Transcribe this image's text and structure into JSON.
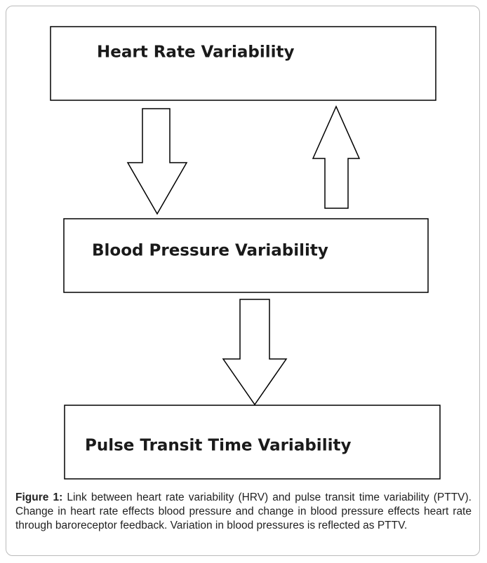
{
  "nodes": [
    {
      "label": "Heart Rate Variability"
    },
    {
      "label": "Blood Pressure Variability"
    },
    {
      "label": "Pulse Transit Time Variability"
    }
  ],
  "caption": {
    "label": "Figure 1:",
    "text": "Link between heart rate variability (HRV) and pulse transit time variability (PTTV). Change in heart rate effects blood pressure and change in blood pressure effects heart rate through baroreceptor feedback. Variation in blood pressures is reflected as PTTV."
  }
}
